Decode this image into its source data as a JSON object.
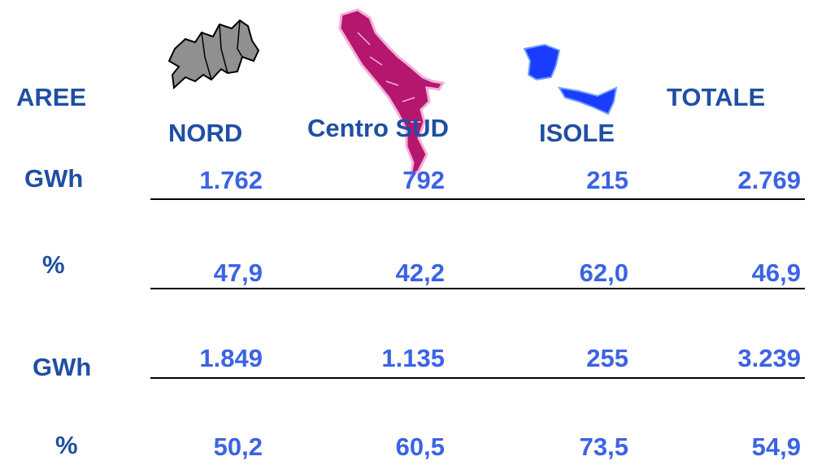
{
  "table": {
    "header": [
      "AREE",
      "NORD",
      "Centro SUD",
      "ISOLE",
      "TOTALE"
    ],
    "rows": [
      [
        "GWh",
        "1.762",
        "792",
        "215",
        "2.769"
      ],
      [
        "%",
        "47,9",
        "42,2",
        "62,0",
        "46,9"
      ],
      [
        "GWh",
        "1.849",
        "1.135",
        "255",
        "3.239"
      ],
      [
        "%",
        "50,2",
        "60,5",
        "73,5",
        "54,9"
      ]
    ]
  }
}
